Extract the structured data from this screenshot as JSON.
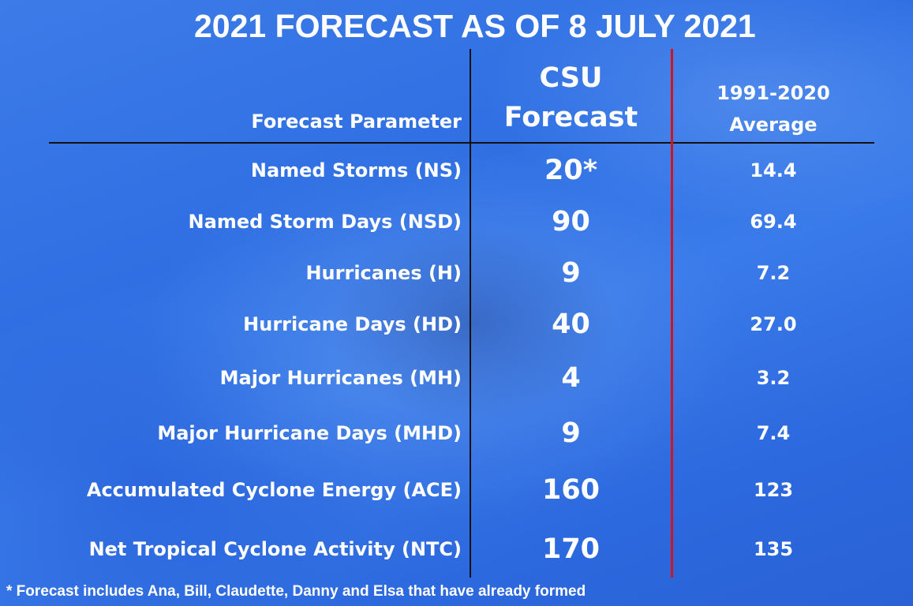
{
  "title": "2021 FORECAST AS OF 8 JULY 2021",
  "headers": {
    "parameter": "Forecast Parameter",
    "csu_line1": "CSU",
    "csu_line2": "Forecast",
    "avg_line1": "1991-2020",
    "avg_line2": "Average"
  },
  "rows": [
    {
      "parameter": "Named Storms (NS)",
      "csu": "20*",
      "avg": "14.4"
    },
    {
      "parameter": "Named Storm Days (NSD)",
      "csu": "90",
      "avg": "69.4"
    },
    {
      "parameter": "Hurricanes (H)",
      "csu": "9",
      "avg": "7.2"
    },
    {
      "parameter": "Hurricane Days (HD)",
      "csu": "40",
      "avg": "27.0"
    },
    {
      "parameter": "Major Hurricanes (MH)",
      "csu": "4",
      "avg": "3.2"
    },
    {
      "parameter": "Major Hurricane Days (MHD)",
      "csu": "9",
      "avg": "7.4"
    },
    {
      "parameter": "Accumulated Cyclone Energy (ACE)",
      "csu": "160",
      "avg": "123"
    },
    {
      "parameter": "Net Tropical Cyclone Activity (NTC)",
      "csu": "170",
      "avg": "135"
    }
  ],
  "footnote": "* Forecast includes Ana, Bill, Claudette, Danny and Elsa that have already formed",
  "chart_data": {
    "type": "table",
    "title": "2021 FORECAST AS OF 8 JULY 2021",
    "columns": [
      "Forecast Parameter",
      "CSU Forecast",
      "1991-2020 Average"
    ],
    "rows": [
      [
        "Named Storms (NS)",
        "20*",
        14.4
      ],
      [
        "Named Storm Days (NSD)",
        90,
        69.4
      ],
      [
        "Hurricanes (H)",
        9,
        7.2
      ],
      [
        "Hurricane Days (HD)",
        40,
        27.0
      ],
      [
        "Major Hurricanes (MH)",
        4,
        3.2
      ],
      [
        "Major Hurricane Days (MHD)",
        9,
        7.4
      ],
      [
        "Accumulated Cyclone Energy (ACE)",
        160,
        123
      ],
      [
        "Net Tropical Cyclone Activity (NTC)",
        170,
        135
      ]
    ],
    "colors": {
      "background": "#3274e6",
      "text": "#ffffff",
      "header_rule": "#111111",
      "column_divider": "#111111",
      "average_divider": "#d2141e"
    }
  }
}
